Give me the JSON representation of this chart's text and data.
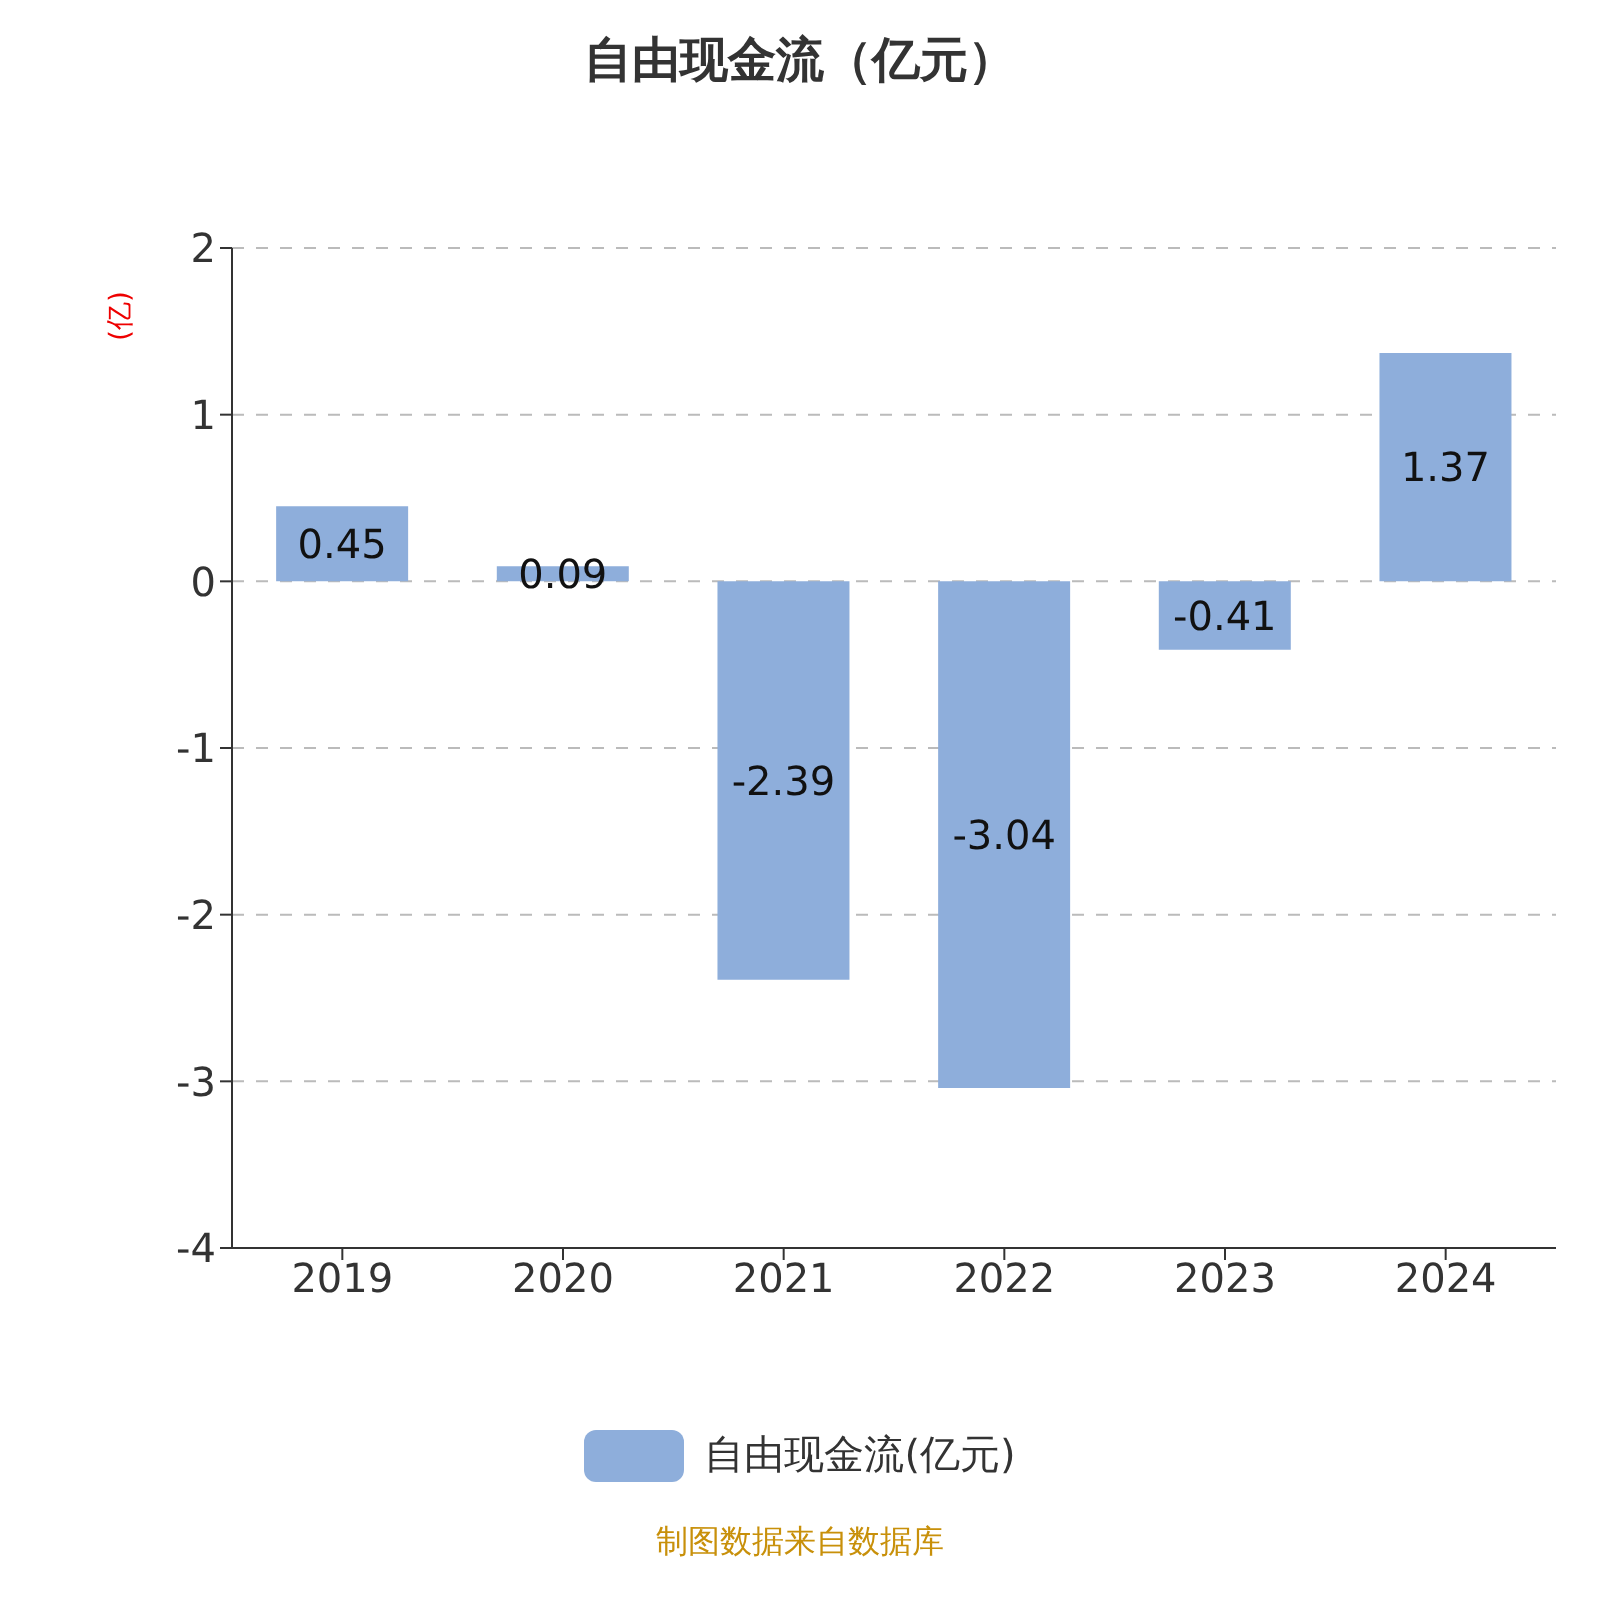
{
  "chart_data": {
    "type": "bar",
    "title": "自由现金流（亿元）",
    "ylabel": "(亿)",
    "categories": [
      "2019",
      "2020",
      "2021",
      "2022",
      "2023",
      "2024"
    ],
    "series": [
      {
        "name": "自由现金流(亿元)",
        "color": "#8eaedb",
        "values": [
          0.45,
          0.09,
          -2.39,
          -3.04,
          -0.41,
          1.37
        ]
      }
    ],
    "ylim": [
      -4,
      2
    ],
    "yticks": [
      -4,
      -3,
      -2,
      -1,
      0,
      1,
      2
    ],
    "grid": "y",
    "legend": "bottom",
    "data_labels": true,
    "annotations": [
      "制图数据来自数据库"
    ]
  }
}
